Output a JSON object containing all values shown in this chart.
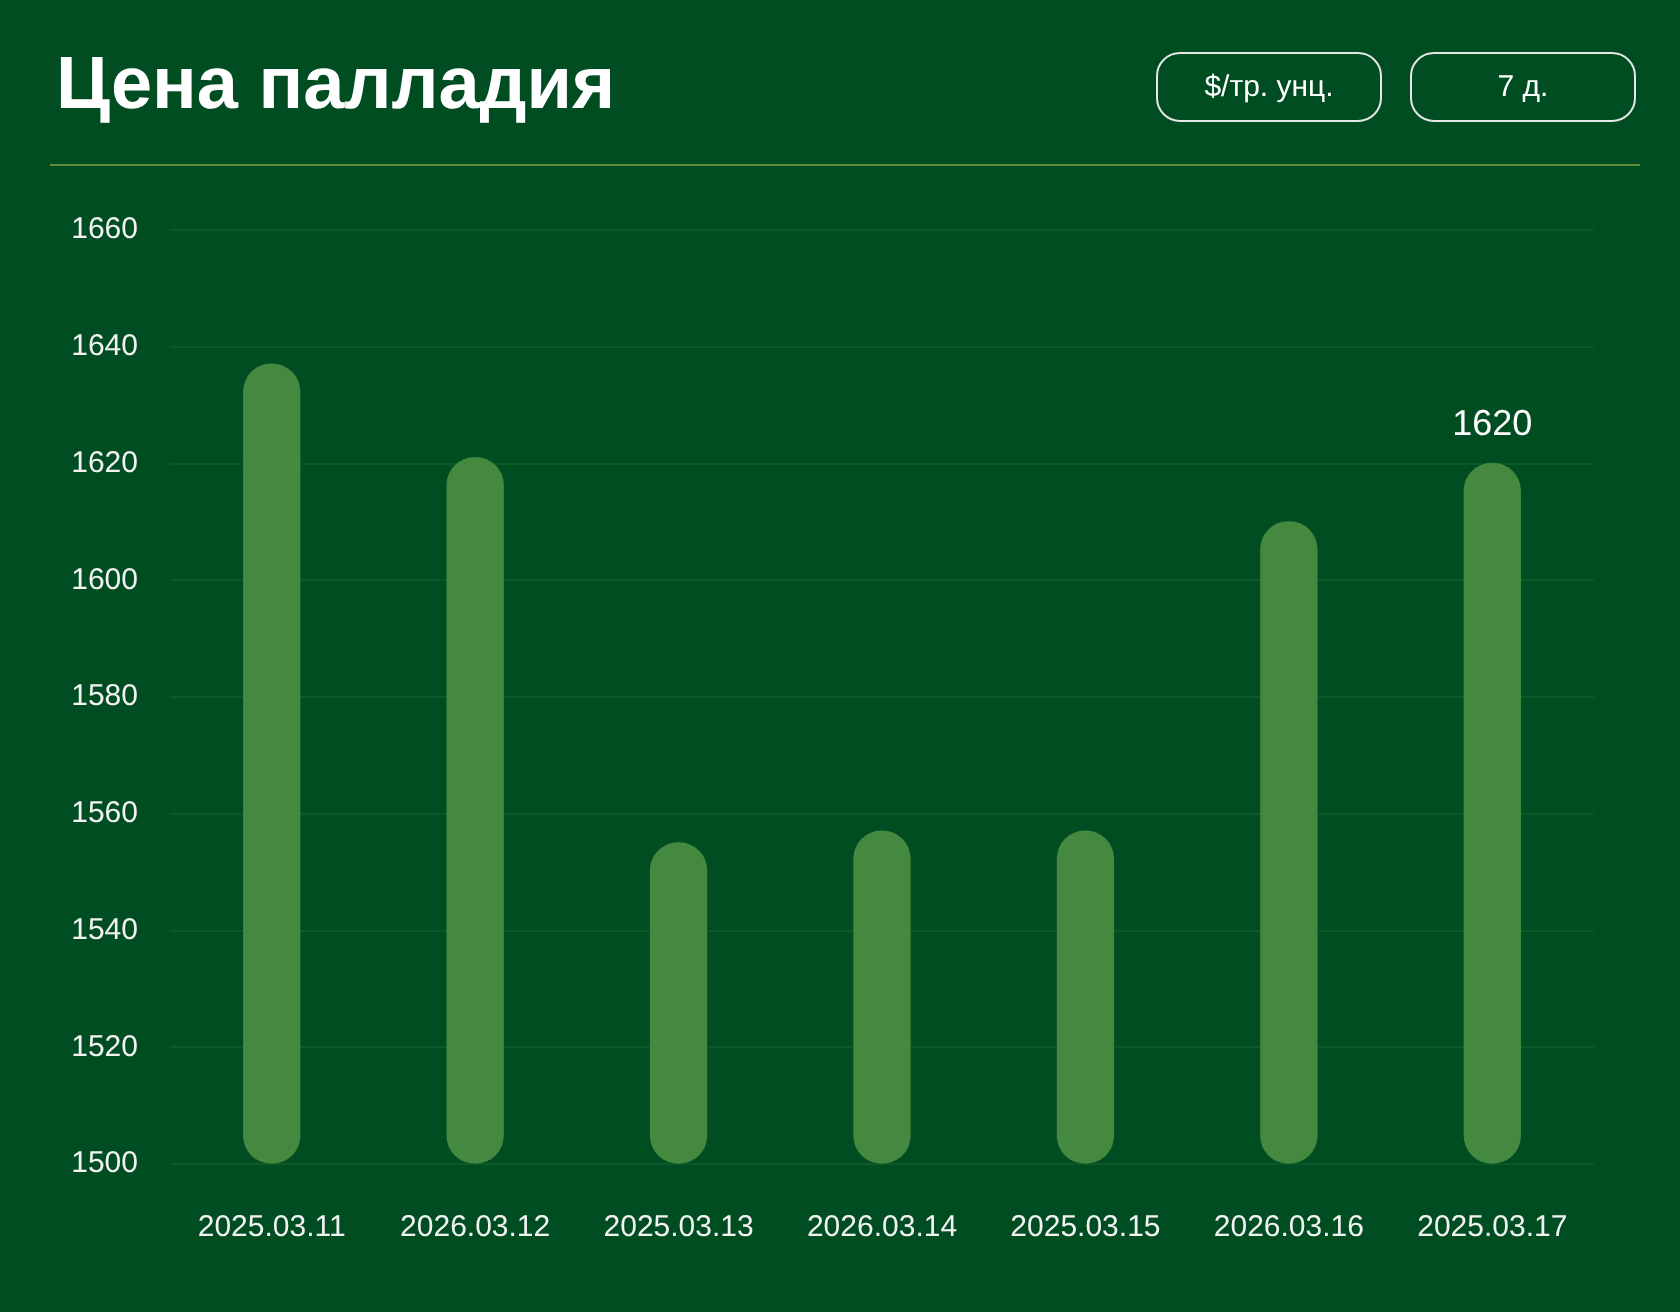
{
  "chart_data": {
    "type": "bar",
    "title": "Цена палладия",
    "annotations": [
      "$/тр. унц.",
      "7 д."
    ],
    "categories": [
      "2025.03.11",
      "2026.03.12",
      "2025.03.13",
      "2026.03.14",
      "2025.03.15",
      "2026.03.16",
      "2025.03.17"
    ],
    "values": [
      1637,
      1621,
      1555,
      1557,
      1557,
      1610,
      1620
    ],
    "color": "#45883f",
    "ylim": [
      1500,
      1660
    ],
    "yticks": [
      1500,
      1520,
      1540,
      1560,
      1580,
      1600,
      1620,
      1640,
      1660
    ],
    "grid": "y",
    "value_labels": [
      null,
      null,
      null,
      null,
      null,
      null,
      "1620"
    ]
  }
}
